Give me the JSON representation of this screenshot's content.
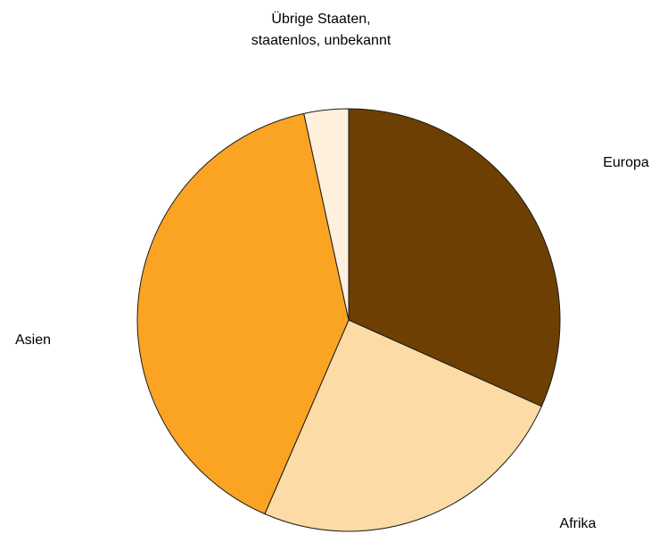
{
  "chart_data": {
    "type": "pie",
    "title": "",
    "start_angle_deg": 0,
    "direction": "clockwise",
    "legend": "none",
    "slices": [
      {
        "label": "Europa",
        "lines": [
          "Europa"
        ],
        "value": 31.7,
        "color": "#6e3f02"
      },
      {
        "label": "Afrika",
        "lines": [
          "Afrika"
        ],
        "value": 24.8,
        "color": "#fcdba6"
      },
      {
        "label": "Asien",
        "lines": [
          "Asien"
        ],
        "value": 40.1,
        "color": "#fba423"
      },
      {
        "label": "Übrige Staaten, staatenlos, unbekannt",
        "lines": [
          "Übrige Staaten,",
          "staatenlos, unbekannt"
        ],
        "value": 3.4,
        "color": "#fff0dc"
      }
    ]
  }
}
